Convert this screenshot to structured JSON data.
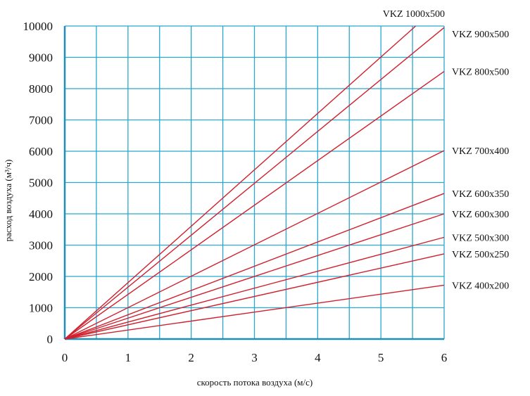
{
  "chart_data": {
    "type": "line",
    "title": "",
    "xlabel": "скорость потока воздуха (м/с)",
    "ylabel": "расход воздуха (м³/ч)",
    "xlim": [
      0,
      6
    ],
    "ylim": [
      0,
      10000
    ],
    "x_ticks": [
      "0",
      "1",
      "2",
      "3",
      "4",
      "5",
      "6"
    ],
    "y_ticks": [
      "0",
      "1000",
      "2000",
      "3000",
      "4000",
      "5000",
      "6000",
      "7000",
      "8000",
      "9000",
      "10000"
    ],
    "grid": true,
    "colors": {
      "line": "#d0202e",
      "grid": "#29a8cf",
      "axis": "#1f8fb8"
    },
    "series": [
      {
        "name": "VKZ 1000x500",
        "x": [
          0,
          5.55
        ],
        "y": [
          0,
          10000
        ]
      },
      {
        "name": "VKZ 900x500",
        "x": [
          0,
          6
        ],
        "y": [
          0,
          9950
        ]
      },
      {
        "name": "VKZ 800x500",
        "x": [
          0,
          6
        ],
        "y": [
          0,
          8550
        ]
      },
      {
        "name": "VKZ 700x400",
        "x": [
          0,
          6
        ],
        "y": [
          0,
          6020
        ]
      },
      {
        "name": "VKZ 600x350",
        "x": [
          0,
          6
        ],
        "y": [
          0,
          4650
        ]
      },
      {
        "name": "VKZ 600x300",
        "x": [
          0,
          6
        ],
        "y": [
          0,
          4000
        ]
      },
      {
        "name": "VKZ 500x300",
        "x": [
          0,
          6
        ],
        "y": [
          0,
          3250
        ]
      },
      {
        "name": "VKZ 500x250",
        "x": [
          0,
          6
        ],
        "y": [
          0,
          2720
        ]
      },
      {
        "name": "VKZ 400x200",
        "x": [
          0,
          6
        ],
        "y": [
          0,
          1720
        ]
      }
    ]
  }
}
